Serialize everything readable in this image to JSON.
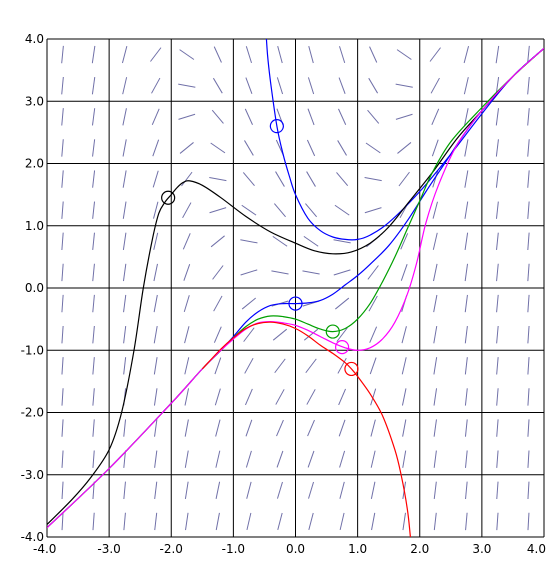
{
  "chart_data": {
    "type": "line",
    "title": "",
    "xlabel": "",
    "ylabel": "",
    "xlim": [
      -4.0,
      4.0
    ],
    "ylim": [
      -4.0,
      4.0
    ],
    "grid": true,
    "x_ticks": [
      "-4.0",
      "-3.0",
      "-2.0",
      "-1.0",
      "0.0",
      "1.0",
      "2.0",
      "3.0",
      "4.0"
    ],
    "y_ticks": [
      "-4.0",
      "-3.0",
      "-2.0",
      "-1.0",
      "0.0",
      "1.0",
      "2.0",
      "3.0",
      "4.0"
    ],
    "slope_field": {
      "color": "#7070a8",
      "spacing": 0.5
    },
    "series": [
      {
        "color": "#0000ff",
        "initial_point": [
          -0.3,
          2.6
        ],
        "x": [
          -0.5,
          -0.45,
          -0.4,
          -0.3,
          -0.2,
          -0.1,
          0.0,
          0.2,
          0.4,
          0.6,
          0.8,
          1.0,
          1.2,
          1.5,
          2.0,
          2.5,
          3.0,
          3.5,
          4.0
        ],
        "y": [
          4.5,
          3.75,
          3.3,
          2.6,
          2.15,
          1.8,
          1.5,
          1.12,
          0.92,
          0.82,
          0.78,
          0.78,
          0.85,
          1.05,
          1.55,
          2.15,
          2.8,
          3.4,
          3.85
        ]
      },
      {
        "color": "#000000",
        "initial_point": [
          -2.05,
          1.45
        ],
        "x": [
          -4.0,
          -3.6,
          -3.3,
          -3.0,
          -2.8,
          -2.6,
          -2.45,
          -2.3,
          -2.2,
          -2.1,
          -2.0,
          -1.9,
          -1.8,
          -1.7,
          -1.5,
          -1.2,
          -0.8,
          -0.4,
          0.0,
          0.3,
          0.6,
          0.9,
          1.2,
          1.5,
          1.8,
          2.2,
          2.6,
          3.0,
          3.5,
          4.0
        ],
        "y": [
          -3.8,
          -3.4,
          -3.05,
          -2.6,
          -2.0,
          -1.0,
          0.0,
          0.8,
          1.2,
          1.38,
          1.5,
          1.62,
          1.7,
          1.72,
          1.65,
          1.45,
          1.15,
          0.9,
          0.72,
          0.6,
          0.55,
          0.58,
          0.72,
          0.98,
          1.35,
          1.85,
          2.4,
          2.85,
          3.4,
          3.85
        ]
      },
      {
        "color": "#0000ff",
        "initial_point": [
          0.0,
          -0.25
        ],
        "x": [
          -4.0,
          -3.0,
          -2.0,
          -1.5,
          -1.2,
          -1.0,
          -0.8,
          -0.6,
          -0.4,
          -0.2,
          0.0,
          0.2,
          0.4,
          0.6,
          0.8,
          1.0,
          1.2,
          1.5,
          1.8,
          2.1,
          2.4,
          2.7,
          3.0,
          3.5,
          4.0
        ],
        "y": [
          -3.85,
          -2.9,
          -1.85,
          -1.3,
          -1.0,
          -0.78,
          -0.55,
          -0.38,
          -0.28,
          -0.25,
          -0.25,
          -0.24,
          -0.2,
          -0.1,
          0.05,
          0.2,
          0.38,
          0.68,
          1.08,
          1.55,
          2.0,
          2.45,
          2.85,
          3.4,
          3.85
        ]
      },
      {
        "color": "#00a000",
        "initial_point": [
          0.6,
          -0.7
        ],
        "x": [
          -4.0,
          -3.0,
          -2.0,
          -1.5,
          -1.2,
          -1.0,
          -0.8,
          -0.6,
          -0.4,
          -0.2,
          0.0,
          0.2,
          0.4,
          0.6,
          0.8,
          1.0,
          1.2,
          1.4,
          1.6,
          1.8,
          2.0,
          2.2,
          2.5,
          3.0,
          3.5,
          4.0
        ],
        "y": [
          -3.85,
          -2.9,
          -1.85,
          -1.3,
          -1.0,
          -0.8,
          -0.62,
          -0.5,
          -0.45,
          -0.46,
          -0.5,
          -0.58,
          -0.66,
          -0.7,
          -0.65,
          -0.5,
          -0.25,
          0.1,
          0.5,
          0.95,
          1.4,
          1.85,
          2.35,
          2.9,
          3.4,
          3.85
        ]
      },
      {
        "color": "#ff00ff",
        "initial_point": [
          0.75,
          -0.95
        ],
        "x": [
          -4.0,
          -3.0,
          -2.0,
          -1.5,
          -1.2,
          -1.0,
          -0.8,
          -0.6,
          -0.4,
          -0.2,
          0.0,
          0.2,
          0.4,
          0.6,
          0.8,
          1.0,
          1.2,
          1.4,
          1.6,
          1.8,
          1.95,
          2.1,
          2.3,
          2.6,
          3.0,
          3.5,
          4.0
        ],
        "y": [
          -3.85,
          -2.9,
          -1.85,
          -1.3,
          -1.0,
          -0.82,
          -0.66,
          -0.56,
          -0.54,
          -0.56,
          -0.6,
          -0.68,
          -0.78,
          -0.88,
          -0.96,
          -1.0,
          -0.96,
          -0.82,
          -0.55,
          -0.1,
          0.4,
          1.05,
          1.65,
          2.3,
          2.85,
          3.4,
          3.85
        ]
      },
      {
        "color": "#ff0000",
        "initial_point": [
          0.9,
          -1.3
        ],
        "x": [
          -1.5,
          -1.2,
          -1.0,
          -0.8,
          -0.6,
          -0.4,
          -0.2,
          0.0,
          0.2,
          0.4,
          0.6,
          0.8,
          0.9,
          1.0,
          1.2,
          1.4,
          1.6,
          1.7,
          1.8,
          1.85,
          1.9
        ],
        "y": [
          -1.3,
          -0.98,
          -0.8,
          -0.65,
          -0.57,
          -0.55,
          -0.58,
          -0.65,
          -0.77,
          -0.92,
          -1.05,
          -1.2,
          -1.3,
          -1.42,
          -1.7,
          -2.05,
          -2.6,
          -3.0,
          -3.55,
          -4.0,
          -4.5
        ]
      }
    ]
  }
}
